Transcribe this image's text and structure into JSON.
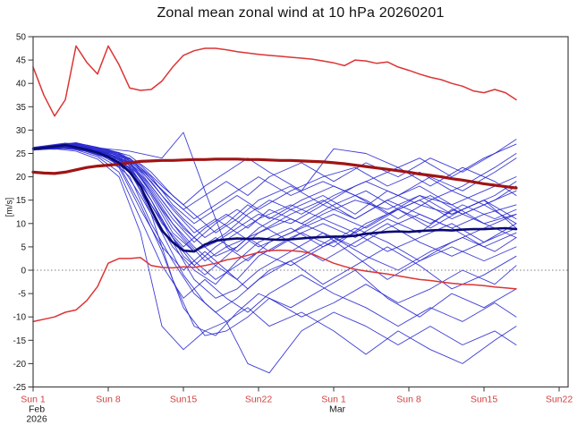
{
  "title": "Zonal mean zonal wind at 10 hPa 20260201",
  "chart_data": {
    "type": "line",
    "subtype": "ensemble-spaghetti",
    "ylabel": "[m/s]",
    "ylim": [
      -25,
      50
    ],
    "yticks": [
      50,
      45,
      40,
      35,
      30,
      25,
      20,
      15,
      10,
      5,
      0,
      -5,
      -10,
      -15,
      -20,
      -25
    ],
    "grid": "off",
    "legend": "none",
    "zero_line": true,
    "x_unit": "days since 2026-02-01",
    "xlim_days": [
      0,
      49.8
    ],
    "tick_label_color": "#d04040",
    "xticks": [
      {
        "day": 0,
        "label": "Sun 1",
        "month": "Feb",
        "year": "2026"
      },
      {
        "day": 7,
        "label": "Sun 8"
      },
      {
        "day": 14,
        "label": "Sun15"
      },
      {
        "day": 21,
        "label": "Sun22"
      },
      {
        "day": 28,
        "label": "Sun 1",
        "month": "Mar"
      },
      {
        "day": 35,
        "label": "Sun 8"
      },
      {
        "day": 42,
        "label": "Sun15"
      },
      {
        "day": 49,
        "label": "Sun22"
      }
    ],
    "series_days": [
      0,
      1,
      2,
      3,
      4,
      5,
      6,
      7,
      8,
      9,
      10,
      11,
      12,
      13,
      14,
      15,
      16,
      17,
      18,
      19,
      20,
      21,
      22,
      23,
      24,
      25,
      26,
      27,
      28,
      29,
      30,
      31,
      32,
      33,
      34,
      35,
      36,
      37,
      38,
      39,
      40,
      41,
      42,
      43,
      44,
      45
    ],
    "series": [
      {
        "id": "climate_max",
        "name": "climatological maximum",
        "color": "#dc3434",
        "width": 1.5,
        "values": [
          43.5,
          37.5,
          33,
          36.5,
          48,
          44.5,
          42,
          48,
          44,
          39,
          38.5,
          38.7,
          40.5,
          43.5,
          46,
          47,
          47.5,
          47.5,
          47.2,
          46.8,
          46.5,
          46.2,
          46,
          45.8,
          45.6,
          45.4,
          45.2,
          44.8,
          44.4,
          43.8,
          45,
          44.8,
          44.3,
          44.6,
          43.5,
          42.8,
          42,
          41.3,
          40.8,
          40,
          39.4,
          38.4,
          38,
          38.7,
          38,
          36.5
        ]
      },
      {
        "id": "climate_min",
        "name": "climatological minimum",
        "color": "#dc3434",
        "width": 1.5,
        "values": [
          -11,
          -10.5,
          -10,
          -9,
          -8.5,
          -6.5,
          -3.5,
          1.5,
          2.5,
          2.5,
          2.7,
          1,
          0.6,
          0.5,
          0.7,
          0.6,
          1,
          1.5,
          2.2,
          2.6,
          3.2,
          3.8,
          4.2,
          4.3,
          4.2,
          4,
          3.5,
          2.5,
          1.5,
          0.8,
          0.2,
          -0.2,
          -0.5,
          -0.8,
          -1.2,
          -1.6,
          -2,
          -2.2,
          -2.5,
          -2.8,
          -3,
          -3.1,
          -3.3,
          -3.6,
          -3.8,
          -4
        ]
      },
      {
        "id": "climate_mean",
        "name": "climatological mean",
        "color": "#a01414",
        "width": 3.2,
        "values": [
          21,
          20.8,
          20.7,
          21,
          21.5,
          22,
          22.3,
          22.5,
          22.7,
          23,
          23.3,
          23.4,
          23.5,
          23.5,
          23.6,
          23.7,
          23.7,
          23.8,
          23.8,
          23.8,
          23.7,
          23.7,
          23.6,
          23.5,
          23.5,
          23.4,
          23.3,
          23.2,
          23,
          22.8,
          22.5,
          22.2,
          21.9,
          21.6,
          21.3,
          21,
          20.6,
          20.3,
          20,
          19.6,
          19.3,
          18.9,
          18.5,
          18.2,
          17.9,
          17.6
        ]
      },
      {
        "id": "ensemble_mean",
        "name": "ensemble mean",
        "color": "#0a0a70",
        "width": 2.6,
        "values": [
          26,
          26.2,
          26.5,
          26.8,
          26.3,
          25.8,
          25.2,
          24.3,
          23,
          21,
          18,
          13,
          8.5,
          6,
          4.2,
          4,
          5.5,
          6.3,
          6.6,
          6.8,
          6.7,
          6.8,
          6.6,
          6.5,
          6.6,
          6.8,
          7,
          7.1,
          7.2,
          7.2,
          7.4,
          7.8,
          8,
          8.2,
          8.3,
          8.2,
          8.4,
          8.5,
          8.6,
          8.5,
          8.7,
          8.8,
          8.8,
          8.9,
          9,
          8.8
        ]
      }
    ],
    "ensemble_members": {
      "name": "ensemble members",
      "color": "#2828d0",
      "width": 0.9,
      "days_grids": {
        "A": [
          0,
          3,
          5,
          7,
          9,
          11,
          13,
          15,
          17,
          19,
          21,
          24,
          27,
          30,
          33,
          36,
          39,
          42,
          45
        ],
        "B": [
          0,
          2,
          4,
          6,
          8,
          10,
          12,
          14,
          16,
          18,
          20,
          22,
          25,
          28,
          31,
          34,
          37,
          40,
          43,
          45
        ],
        "S": [
          0,
          3,
          6,
          9,
          12,
          14,
          16,
          18,
          21,
          24,
          27,
          30,
          33,
          36,
          39,
          42,
          45
        ]
      },
      "members": [
        {
          "grid": "A",
          "v": [
            26,
            26.5,
            26,
            24.5,
            22,
            16,
            8,
            4,
            6,
            9,
            12,
            10,
            14,
            11,
            15,
            12,
            9,
            12,
            14
          ]
        },
        {
          "grid": "A",
          "v": [
            25.8,
            26.8,
            25.5,
            24,
            21,
            13,
            5,
            0,
            -3,
            2,
            6,
            9,
            5,
            8,
            4,
            7,
            10,
            6,
            9
          ]
        },
        {
          "grid": "A",
          "v": [
            26.2,
            27,
            26.5,
            25,
            23,
            18,
            12,
            7,
            3,
            5,
            9,
            13,
            16,
            12,
            17,
            14,
            12,
            15,
            9
          ]
        },
        {
          "grid": "A",
          "v": [
            26,
            26.3,
            25.8,
            24.8,
            22.5,
            15,
            6,
            -2,
            -6,
            -4,
            0,
            4,
            8,
            3,
            -2,
            2,
            5,
            2,
            5
          ]
        },
        {
          "grid": "A",
          "v": [
            25.9,
            26.6,
            26.2,
            25.5,
            24,
            20,
            14,
            10,
            13,
            16,
            13,
            17,
            20,
            22,
            18,
            21,
            17,
            14,
            10
          ]
        },
        {
          "grid": "A",
          "v": [
            26.1,
            26.9,
            26.3,
            24.2,
            20,
            10,
            2,
            -5,
            -9,
            -6,
            -2,
            2,
            -3,
            1,
            5,
            1,
            -4,
            -1,
            3
          ]
        },
        {
          "grid": "A",
          "v": [
            26,
            26.4,
            25.7,
            24.6,
            23,
            17,
            10,
            5,
            1,
            -2,
            3,
            7,
            10,
            7,
            11,
            8,
            13,
            10,
            7
          ]
        },
        {
          "grid": "A",
          "v": [
            25.7,
            26.2,
            25.9,
            25.2,
            23.5,
            19,
            13,
            8,
            11,
            8,
            5,
            8,
            12,
            15,
            13,
            16,
            14,
            10,
            12
          ]
        },
        {
          "grid": "A",
          "v": [
            26.3,
            27.2,
            26.8,
            25.8,
            24.5,
            21,
            16,
            12,
            8,
            11,
            15,
            18,
            14,
            18,
            21,
            24,
            20,
            24,
            27
          ]
        },
        {
          "grid": "A",
          "v": [
            26,
            26.1,
            25.5,
            24,
            21.5,
            14,
            7,
            2,
            -2,
            1,
            4,
            1,
            5,
            9,
            6,
            2,
            6,
            9,
            12
          ]
        },
        {
          "grid": "A",
          "v": [
            25.8,
            26.5,
            26,
            25,
            22,
            12,
            -2,
            -12,
            -14,
            -9,
            -5,
            -8,
            -4,
            0,
            -6,
            -10,
            -5,
            -8,
            -4
          ]
        },
        {
          "grid": "A",
          "v": [
            26.2,
            26.7,
            26.1,
            25.3,
            23.8,
            19.5,
            15,
            11,
            14,
            17,
            20,
            16,
            19,
            16,
            12,
            16,
            12,
            15,
            11
          ]
        },
        {
          "grid": "A",
          "v": [
            26,
            26.2,
            25.6,
            24.4,
            22.8,
            16.5,
            9,
            4,
            7,
            4,
            8,
            11,
            8,
            5,
            9,
            12,
            9,
            5,
            8
          ]
        },
        {
          "grid": "B",
          "v": [
            26,
            26.4,
            26.8,
            25.6,
            24.2,
            19,
            11,
            3,
            -1,
            3,
            7,
            4,
            8,
            5,
            10,
            13,
            10,
            14,
            11,
            13
          ]
        },
        {
          "grid": "B",
          "v": [
            25.9,
            26.2,
            26.6,
            25.2,
            23,
            16,
            8,
            -1,
            -7,
            -11,
            -8,
            -12,
            -9,
            -13,
            -18,
            -13,
            -17,
            -20,
            -15,
            -12
          ]
        },
        {
          "grid": "B",
          "v": [
            26.1,
            26.6,
            27.1,
            26,
            24.8,
            21,
            15,
            9,
            5,
            8,
            12,
            15,
            12,
            16,
            19,
            16,
            20,
            17,
            21,
            24
          ]
        },
        {
          "grid": "B",
          "v": [
            26,
            25.9,
            26.3,
            25,
            22.5,
            14,
            4,
            -8,
            -14,
            -13,
            -10,
            -6,
            -10,
            -7,
            -3,
            -7,
            -4,
            0,
            -3,
            1
          ]
        },
        {
          "grid": "B",
          "v": [
            25.8,
            26.1,
            26.5,
            25.4,
            24,
            18,
            10,
            5,
            9,
            12,
            9,
            13,
            10,
            14,
            17,
            13,
            9,
            13,
            16,
            19
          ]
        },
        {
          "grid": "B",
          "v": [
            26.2,
            26.8,
            27.3,
            26.2,
            25,
            22,
            17,
            13,
            16,
            19,
            16,
            20,
            23,
            19,
            23,
            20,
            24,
            21,
            25,
            28
          ]
        },
        {
          "grid": "B",
          "v": [
            26,
            26.3,
            26.1,
            24.6,
            22,
            13,
            5,
            0,
            4,
            0,
            -4,
            0,
            3,
            7,
            3,
            0,
            4,
            7,
            4,
            7
          ]
        },
        {
          "grid": "B",
          "v": [
            25.9,
            26.5,
            26.9,
            25.8,
            24.5,
            20,
            13,
            7,
            2,
            5,
            2,
            6,
            9,
            12,
            9,
            13,
            16,
            12,
            15,
            18
          ]
        },
        {
          "grid": "B",
          "v": [
            26.1,
            26.2,
            25.8,
            24.3,
            21,
            11,
            1,
            -6,
            -2,
            -6,
            -9,
            -5,
            -1,
            -5,
            -8,
            -12,
            -8,
            -11,
            -7,
            -10
          ]
        },
        {
          "grid": "B",
          "v": [
            26,
            26.7,
            27,
            26.1,
            25.2,
            22.5,
            18,
            14,
            18,
            21,
            24,
            21,
            17,
            26,
            25,
            22,
            18,
            22,
            19,
            16
          ]
        },
        {
          "grid": "B",
          "v": [
            25.7,
            26,
            25.5,
            23.8,
            20,
            8,
            -12,
            -17,
            -13,
            -11,
            -20,
            -22,
            -13,
            -9,
            -12,
            -16,
            -12,
            -16,
            -13,
            -16
          ]
        },
        {
          "grid": "S",
          "v": [
            26,
            26.5,
            26.2,
            25.5,
            24,
            29.5,
            17,
            5,
            8,
            12,
            15,
            11,
            15,
            18,
            14,
            17,
            20
          ]
        },
        {
          "grid": "A",
          "v": [
            26.1,
            26.4,
            26,
            24.9,
            23.2,
            17.5,
            11,
            6,
            10,
            13,
            10,
            6,
            2,
            6,
            10,
            6,
            3,
            6,
            10
          ]
        },
        {
          "grid": "B",
          "v": [
            26,
            26.6,
            27.2,
            26.3,
            25,
            21.5,
            16,
            11,
            7,
            10,
            14,
            11,
            15,
            18,
            15,
            11,
            15,
            18,
            22,
            25
          ]
        },
        {
          "grid": "A",
          "v": [
            25.8,
            26.3,
            25.7,
            24.1,
            21.8,
            15,
            7,
            1,
            5,
            8,
            11,
            14,
            11,
            8,
            12,
            15,
            11,
            14,
            17
          ]
        }
      ]
    }
  }
}
